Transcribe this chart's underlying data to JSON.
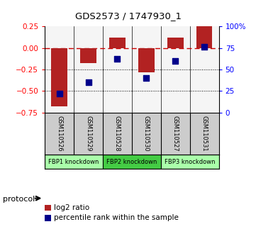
{
  "title": "GDS2573 / 1747930_1",
  "samples": [
    "GSM110526",
    "GSM110529",
    "GSM110528",
    "GSM110530",
    "GSM110527",
    "GSM110531"
  ],
  "log2_ratio": [
    -0.68,
    -0.18,
    0.12,
    -0.28,
    0.12,
    0.25
  ],
  "percentile_rank": [
    22,
    35,
    62,
    40,
    60,
    76
  ],
  "ylim_left": [
    -0.75,
    0.25
  ],
  "ylim_right": [
    0,
    100
  ],
  "yticks_left": [
    0.25,
    0,
    -0.25,
    -0.5,
    -0.75
  ],
  "yticks_right": [
    100,
    75,
    50,
    25,
    0
  ],
  "hlines": [
    -0.25,
    -0.5
  ],
  "bar_color": "#b22222",
  "dot_color": "#00008b",
  "dashed_color": "#cc0000",
  "group_labels": [
    "FBP1 knockdown",
    "FBP2 knockdown",
    "FBP3 knockdown"
  ],
  "group_ranges": [
    [
      0,
      1
    ],
    [
      2,
      3
    ],
    [
      4,
      5
    ]
  ],
  "group_colors": [
    "#aaffaa",
    "#44cc44",
    "#aaffaa"
  ],
  "legend_red_label": "log2 ratio",
  "legend_blue_label": "percentile rank within the sample",
  "protocol_label": "protocol",
  "background_color": "#ffffff",
  "plot_bg_color": "#f5f5f5"
}
